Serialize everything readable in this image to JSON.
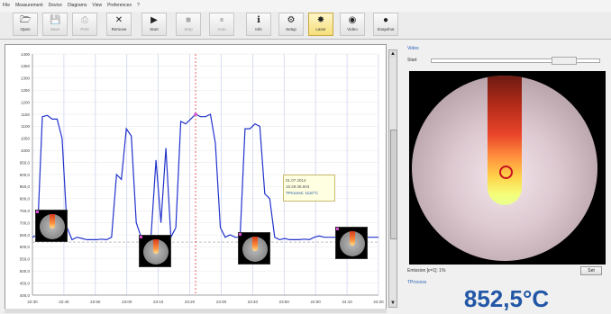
{
  "menu": [
    "File",
    "Measurement",
    "Device",
    "Diagrams",
    "View",
    "Preferences",
    "?"
  ],
  "toolbar": [
    {
      "label": "Open",
      "icon": "open-folder-icon",
      "glyph": "🗁",
      "state": "normal"
    },
    {
      "label": "Save",
      "icon": "save-icon",
      "glyph": "💾",
      "state": "dim"
    },
    {
      "label": "Print",
      "icon": "print-icon",
      "glyph": "⎙",
      "state": "dim"
    },
    {
      "label": "Remove",
      "icon": "remove-x-icon",
      "glyph": "✕",
      "state": "normal"
    },
    {
      "label": "Start",
      "icon": "start-play-icon",
      "glyph": "▶",
      "state": "normal"
    },
    {
      "label": "Stop",
      "icon": "stop-icon",
      "glyph": "■",
      "state": "dim"
    },
    {
      "label": "Auto",
      "icon": "auto-icon",
      "glyph": "⏸",
      "state": "dim"
    },
    {
      "label": "Info",
      "icon": "info-icon",
      "glyph": "ℹ",
      "state": "normal"
    },
    {
      "label": "Setup",
      "icon": "setup-icon",
      "glyph": "⚙",
      "state": "normal"
    },
    {
      "label": "Laser",
      "icon": "laser-icon",
      "glyph": "✸",
      "state": "active"
    },
    {
      "label": "Video",
      "icon": "video-icon",
      "glyph": "◉",
      "state": "normal"
    },
    {
      "label": "Snapshot",
      "icon": "snapshot-icon",
      "glyph": "●",
      "state": "normal"
    }
  ],
  "chart": {
    "y_ticks": [
      "1400",
      "1350",
      "1300",
      "1250",
      "1200",
      "1150",
      "1100",
      "1050",
      "1000",
      "950,0",
      "900,0",
      "850,0",
      "800,0",
      "750,0",
      "700,0",
      "650,0",
      "600,0",
      "550,0",
      "500,0",
      "450,0",
      "400,0"
    ],
    "x_ticks": [
      "22:30",
      "22:40",
      "22:50",
      "23:00",
      "23:10",
      "23:20",
      "23:30",
      "23:40",
      "23:50",
      "24:00",
      "24:10",
      "24:20"
    ]
  },
  "tooltip": {
    "line1": "01.07.2014",
    "line2": "15:29:38.803",
    "line3": "TProcess: 1110°C"
  },
  "video": {
    "title": "Video",
    "start_label": "Start"
  },
  "emissivity": "Emission [ε=1]:  1%",
  "set_button": "Set",
  "process": {
    "label": "TProcess",
    "value": "852,5°C"
  },
  "colors": {
    "curve": "#2233cc",
    "cursor": "#e03a3a",
    "temp": "#2256a6"
  },
  "chart_data": {
    "type": "line",
    "title": "",
    "ylim": [
      400,
      1400
    ],
    "x": [
      0,
      1,
      2,
      3,
      4,
      5,
      6,
      7,
      8,
      9,
      10,
      11,
      12,
      13,
      14,
      15,
      16,
      17,
      18,
      19,
      20,
      21,
      22,
      23,
      24,
      25,
      26,
      27,
      28,
      29,
      30,
      31,
      32,
      33,
      34,
      35,
      36,
      37,
      38,
      39,
      40,
      41,
      42,
      43,
      44,
      45,
      46,
      47,
      48,
      49,
      50,
      51,
      52,
      53,
      54,
      55,
      56,
      57,
      58,
      59,
      60,
      61,
      62,
      63,
      64,
      65,
      66,
      67,
      68,
      69,
      70
    ],
    "values": [
      640,
      650,
      1140,
      1145,
      1130,
      1130,
      1050,
      680,
      630,
      640,
      635,
      630,
      630,
      630,
      632,
      630,
      640,
      900,
      880,
      1090,
      1060,
      700,
      640,
      640,
      650,
      960,
      700,
      1010,
      640,
      680,
      1120,
      1110,
      1130,
      1150,
      1140,
      1140,
      1150,
      1030,
      680,
      640,
      650,
      640,
      640,
      1090,
      1090,
      1110,
      1100,
      820,
      800,
      640,
      630,
      635,
      630,
      630,
      630,
      632,
      630,
      640,
      645,
      640,
      640,
      640,
      640,
      640,
      640,
      640,
      640,
      640,
      640,
      640,
      640
    ]
  }
}
